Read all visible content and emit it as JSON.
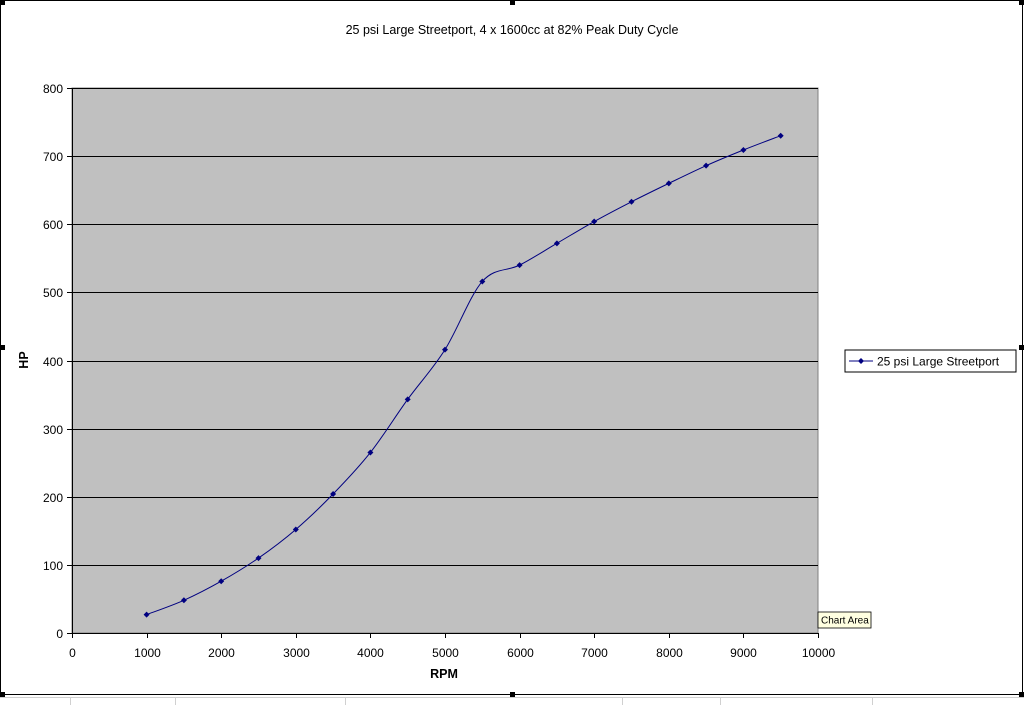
{
  "chart_data": {
    "type": "line",
    "title": "25 psi Large Streetport, 4 x 1600cc at 82% Peak Duty Cycle",
    "xlabel": "RPM",
    "ylabel": "HP",
    "xlim": [
      0,
      10000
    ],
    "ylim": [
      0,
      800
    ],
    "xticks": [
      0,
      1000,
      2000,
      3000,
      4000,
      5000,
      6000,
      7000,
      8000,
      9000,
      10000
    ],
    "yticks": [
      0,
      100,
      200,
      300,
      400,
      500,
      600,
      700,
      800
    ],
    "grid": "horizontal",
    "legend_position": "right",
    "plot_background": "#c0c0c0",
    "series": [
      {
        "name": "25 psi Large Streetport",
        "color": "#000080",
        "marker": "diamond",
        "x": [
          1000,
          1500,
          2000,
          2500,
          3000,
          3500,
          4000,
          4500,
          5000,
          5500,
          6000,
          6500,
          7000,
          7500,
          8000,
          8500,
          9000,
          9500
        ],
        "y": [
          27,
          48,
          76,
          110,
          152,
          204,
          265,
          343,
          416,
          516,
          540,
          572,
          604,
          633,
          660,
          686,
          709,
          730
        ]
      }
    ]
  },
  "tooltip": {
    "text": "Chart Area"
  }
}
